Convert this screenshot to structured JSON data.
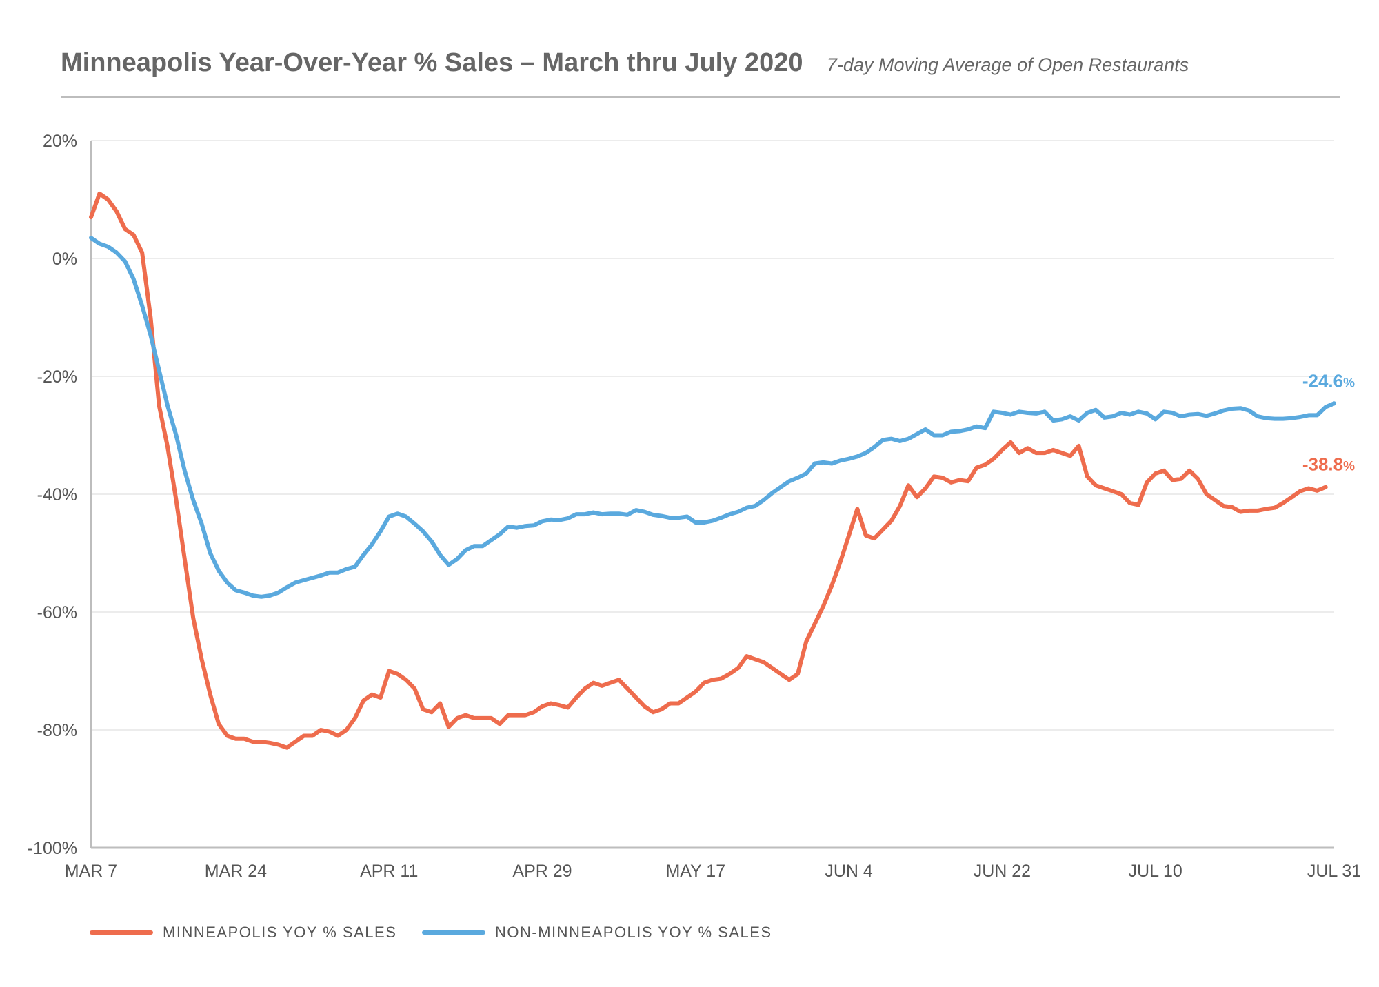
{
  "header": {
    "title": "Minneapolis Year-Over-Year % Sales – March thru July 2020",
    "subtitle": "7-day Moving Average of Open Restaurants"
  },
  "colors": {
    "minneapolis": "#ee6c4d",
    "non_minneapolis": "#5aa9de",
    "grid": "#e6e6e6",
    "axis": "#bdbdbd"
  },
  "chart_data": {
    "type": "line",
    "title": "Minneapolis Year-Over-Year % Sales – March thru July 2020",
    "subtitle": "7-day Moving Average of Open Restaurants",
    "xlabel": "",
    "ylabel": "",
    "x_start": "MAR 7",
    "x_end": "JUL 31",
    "x_ticks": [
      "MAR 7",
      "MAR 24",
      "APR 11",
      "APR 29",
      "MAY 17",
      "JUN 4",
      "JUN 22",
      "JUL 10",
      "JUL 31"
    ],
    "x_tick_days": [
      0,
      17,
      35,
      53,
      71,
      89,
      107,
      125,
      146
    ],
    "y_ticks": [
      20,
      0,
      -20,
      -40,
      -60,
      -80,
      -100
    ],
    "y_tick_labels": [
      "20%",
      "0%",
      "-20%",
      "-40%",
      "-60%",
      "-80%",
      "-100%"
    ],
    "ylim": [
      -100,
      20
    ],
    "grid": true,
    "legend": "bottom",
    "series": [
      {
        "name": "MINNEAPOLIS YOY % SALES",
        "color": "#ee6c4d",
        "end_label": "-38.8%",
        "points": [
          [
            0,
            7
          ],
          [
            1,
            11
          ],
          [
            2,
            10
          ],
          [
            3,
            8
          ],
          [
            4,
            5
          ],
          [
            5,
            4
          ],
          [
            6,
            1
          ],
          [
            7,
            -10
          ],
          [
            8,
            -25
          ],
          [
            9,
            -32
          ],
          [
            10,
            -41
          ],
          [
            11,
            -51
          ],
          [
            12,
            -61
          ],
          [
            13,
            -68
          ],
          [
            14,
            -74
          ],
          [
            15,
            -79
          ],
          [
            16,
            -81
          ],
          [
            17,
            -81.5
          ],
          [
            18,
            -81.5
          ],
          [
            19,
            -82
          ],
          [
            20,
            -82
          ],
          [
            21,
            -82.2
          ],
          [
            22,
            -82.5
          ],
          [
            23,
            -83
          ],
          [
            24,
            -82
          ],
          [
            25,
            -81
          ],
          [
            26,
            -81
          ],
          [
            27,
            -80
          ],
          [
            28,
            -80.3
          ],
          [
            29,
            -81
          ],
          [
            30,
            -80
          ],
          [
            31,
            -78
          ],
          [
            32,
            -75
          ],
          [
            33,
            -74
          ],
          [
            34,
            -74.5
          ],
          [
            35,
            -70
          ],
          [
            36,
            -70.5
          ],
          [
            37,
            -71.5
          ],
          [
            38,
            -73
          ],
          [
            39,
            -76.5
          ],
          [
            40,
            -77
          ],
          [
            41,
            -75.5
          ],
          [
            42,
            -79.5
          ],
          [
            43,
            -78
          ],
          [
            44,
            -77.5
          ],
          [
            45,
            -78
          ],
          [
            46,
            -78
          ],
          [
            47,
            -78
          ],
          [
            48,
            -79
          ],
          [
            49,
            -77.5
          ],
          [
            50,
            -77.5
          ],
          [
            51,
            -77.5
          ],
          [
            52,
            -77
          ],
          [
            53,
            -76
          ],
          [
            54,
            -75.5
          ],
          [
            55,
            -75.8
          ],
          [
            56,
            -76.2
          ],
          [
            57,
            -74.5
          ],
          [
            58,
            -73
          ],
          [
            59,
            -72
          ],
          [
            60,
            -72.5
          ],
          [
            61,
            -72
          ],
          [
            62,
            -71.5
          ],
          [
            63,
            -73
          ],
          [
            64,
            -74.5
          ],
          [
            65,
            -76
          ],
          [
            66,
            -77
          ],
          [
            67,
            -76.5
          ],
          [
            68,
            -75.5
          ],
          [
            69,
            -75.5
          ],
          [
            70,
            -74.5
          ],
          [
            71,
            -73.5
          ],
          [
            72,
            -72
          ],
          [
            73,
            -71.5
          ],
          [
            74,
            -71.3
          ],
          [
            75,
            -70.5
          ],
          [
            76,
            -69.5
          ],
          [
            77,
            -67.5
          ],
          [
            78,
            -68
          ],
          [
            79,
            -68.5
          ],
          [
            80,
            -69.5
          ],
          [
            81,
            -70.5
          ],
          [
            82,
            -71.5
          ],
          [
            83,
            -70.5
          ],
          [
            84,
            -65
          ],
          [
            85,
            -62
          ],
          [
            86,
            -59
          ],
          [
            87,
            -55.5
          ],
          [
            88,
            -51.5
          ],
          [
            89,
            -47
          ],
          [
            90,
            -42.5
          ],
          [
            91,
            -47
          ],
          [
            92,
            -47.5
          ],
          [
            93,
            -46
          ],
          [
            94,
            -44.5
          ],
          [
            95,
            -42
          ],
          [
            96,
            -38.5
          ],
          [
            97,
            -40.5
          ],
          [
            98,
            -39
          ],
          [
            99,
            -37
          ],
          [
            100,
            -37.2
          ],
          [
            101,
            -38
          ],
          [
            102,
            -37.6
          ],
          [
            103,
            -37.8
          ],
          [
            104,
            -35.5
          ],
          [
            105,
            -35
          ],
          [
            106,
            -34
          ],
          [
            107,
            -32.5
          ],
          [
            108,
            -31.2
          ],
          [
            109,
            -33
          ],
          [
            110,
            -32.2
          ],
          [
            111,
            -33
          ],
          [
            112,
            -33
          ],
          [
            113,
            -32.5
          ],
          [
            114,
            -33
          ],
          [
            115,
            -33.5
          ],
          [
            116,
            -31.8
          ],
          [
            117,
            -37
          ],
          [
            118,
            -38.5
          ],
          [
            119,
            -39
          ],
          [
            120,
            -39.5
          ],
          [
            121,
            -40
          ],
          [
            122,
            -41.5
          ],
          [
            123,
            -41.8
          ],
          [
            124,
            -38
          ],
          [
            125,
            -36.5
          ],
          [
            126,
            -36
          ],
          [
            127,
            -37.6
          ],
          [
            128,
            -37.4
          ],
          [
            129,
            -36
          ],
          [
            130,
            -37.4
          ],
          [
            131,
            -40
          ],
          [
            132,
            -41
          ],
          [
            133,
            -42
          ],
          [
            134,
            -42.2
          ],
          [
            135,
            -43
          ],
          [
            136,
            -42.8
          ],
          [
            137,
            -42.8
          ],
          [
            138,
            -42.5
          ],
          [
            139,
            -42.3
          ],
          [
            140,
            -41.5
          ],
          [
            141,
            -40.5
          ],
          [
            142,
            -39.5
          ],
          [
            143,
            -39
          ],
          [
            144,
            -39.4
          ],
          [
            145,
            -38.8
          ]
        ]
      },
      {
        "name": "NON-MINNEAPOLIS YOY % SALES",
        "color": "#5aa9de",
        "end_label": "-24.6%",
        "points": [
          [
            0,
            3.5
          ],
          [
            1,
            2.5
          ],
          [
            2,
            2
          ],
          [
            3,
            1
          ],
          [
            4,
            -0.5
          ],
          [
            5,
            -3.5
          ],
          [
            6,
            -8
          ],
          [
            7,
            -13
          ],
          [
            8,
            -19
          ],
          [
            9,
            -25
          ],
          [
            10,
            -30
          ],
          [
            11,
            -36
          ],
          [
            12,
            -41
          ],
          [
            13,
            -45
          ],
          [
            14,
            -50
          ],
          [
            15,
            -53
          ],
          [
            16,
            -55
          ],
          [
            17,
            -56.3
          ],
          [
            18,
            -56.7
          ],
          [
            19,
            -57.2
          ],
          [
            20,
            -57.4
          ],
          [
            21,
            -57.2
          ],
          [
            22,
            -56.7
          ],
          [
            23,
            -55.8
          ],
          [
            24,
            -55
          ],
          [
            25,
            -54.6
          ],
          [
            26,
            -54.2
          ],
          [
            27,
            -53.8
          ],
          [
            28,
            -53.3
          ],
          [
            29,
            -53.3
          ],
          [
            30,
            -52.7
          ],
          [
            31,
            -52.3
          ],
          [
            32,
            -50.3
          ],
          [
            33,
            -48.5
          ],
          [
            34,
            -46.3
          ],
          [
            35,
            -43.8
          ],
          [
            36,
            -43.3
          ],
          [
            37,
            -43.8
          ],
          [
            38,
            -45
          ],
          [
            39,
            -46.3
          ],
          [
            40,
            -48
          ],
          [
            41,
            -50.3
          ],
          [
            42,
            -52
          ],
          [
            43,
            -51
          ],
          [
            44,
            -49.5
          ],
          [
            45,
            -48.8
          ],
          [
            46,
            -48.8
          ],
          [
            47,
            -47.8
          ],
          [
            48,
            -46.8
          ],
          [
            49,
            -45.5
          ],
          [
            50,
            -45.7
          ],
          [
            51,
            -45.4
          ],
          [
            52,
            -45.3
          ],
          [
            53,
            -44.6
          ],
          [
            54,
            -44.3
          ],
          [
            55,
            -44.4
          ],
          [
            56,
            -44.1
          ],
          [
            57,
            -43.4
          ],
          [
            58,
            -43.4
          ],
          [
            59,
            -43.1
          ],
          [
            60,
            -43.4
          ],
          [
            61,
            -43.3
          ],
          [
            62,
            -43.3
          ],
          [
            63,
            -43.5
          ],
          [
            64,
            -42.7
          ],
          [
            65,
            -43
          ],
          [
            66,
            -43.5
          ],
          [
            67,
            -43.7
          ],
          [
            68,
            -44
          ],
          [
            69,
            -44
          ],
          [
            70,
            -43.8
          ],
          [
            71,
            -44.8
          ],
          [
            72,
            -44.8
          ],
          [
            73,
            -44.5
          ],
          [
            74,
            -44
          ],
          [
            75,
            -43.4
          ],
          [
            76,
            -43
          ],
          [
            77,
            -42.3
          ],
          [
            78,
            -42
          ],
          [
            79,
            -41
          ],
          [
            80,
            -39.8
          ],
          [
            81,
            -38.8
          ],
          [
            82,
            -37.8
          ],
          [
            83,
            -37.2
          ],
          [
            84,
            -36.5
          ],
          [
            85,
            -34.8
          ],
          [
            86,
            -34.6
          ],
          [
            87,
            -34.8
          ],
          [
            88,
            -34.3
          ],
          [
            89,
            -34
          ],
          [
            90,
            -33.6
          ],
          [
            91,
            -33
          ],
          [
            92,
            -32
          ],
          [
            93,
            -30.8
          ],
          [
            94,
            -30.6
          ],
          [
            95,
            -31
          ],
          [
            96,
            -30.6
          ],
          [
            97,
            -29.8
          ],
          [
            98,
            -29
          ],
          [
            99,
            -30
          ],
          [
            100,
            -30
          ],
          [
            101,
            -29.4
          ],
          [
            102,
            -29.3
          ],
          [
            103,
            -29
          ],
          [
            104,
            -28.5
          ],
          [
            105,
            -28.8
          ],
          [
            106,
            -26
          ],
          [
            107,
            -26.2
          ],
          [
            108,
            -26.5
          ],
          [
            109,
            -26
          ],
          [
            110,
            -26.2
          ],
          [
            111,
            -26.3
          ],
          [
            112,
            -26
          ],
          [
            113,
            -27.5
          ],
          [
            114,
            -27.3
          ],
          [
            115,
            -26.8
          ],
          [
            116,
            -27.5
          ],
          [
            117,
            -26.2
          ],
          [
            118,
            -25.7
          ],
          [
            119,
            -27
          ],
          [
            120,
            -26.8
          ],
          [
            121,
            -26.2
          ],
          [
            122,
            -26.5
          ],
          [
            123,
            -26
          ],
          [
            124,
            -26.3
          ],
          [
            125,
            -27.3
          ],
          [
            126,
            -26
          ],
          [
            127,
            -26.2
          ],
          [
            128,
            -26.8
          ],
          [
            129,
            -26.5
          ],
          [
            130,
            -26.4
          ],
          [
            131,
            -26.7
          ],
          [
            132,
            -26.3
          ],
          [
            133,
            -25.8
          ],
          [
            134,
            -25.5
          ],
          [
            135,
            -25.4
          ],
          [
            136,
            -25.8
          ],
          [
            137,
            -26.8
          ],
          [
            138,
            -27.1
          ],
          [
            139,
            -27.2
          ],
          [
            140,
            -27.2
          ],
          [
            141,
            -27.1
          ],
          [
            142,
            -26.9
          ],
          [
            143,
            -26.6
          ],
          [
            144,
            -26.6
          ],
          [
            145,
            -25.2
          ],
          [
            146,
            -24.6
          ]
        ]
      }
    ]
  },
  "legend": {
    "items": [
      {
        "label": "MINNEAPOLIS YOY % SALES"
      },
      {
        "label": "NON-MINNEAPOLIS YOY % SALES"
      }
    ]
  }
}
